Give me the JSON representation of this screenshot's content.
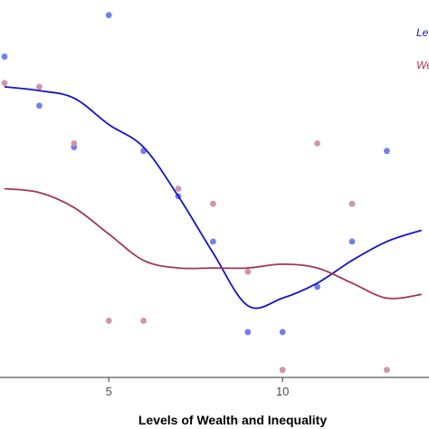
{
  "chart_data": {
    "type": "scatter",
    "xlabel": "Levels of Wealth and Inequality",
    "x_ticks": [
      5,
      10
    ],
    "xlim": [
      2,
      16
    ],
    "ylim": [
      0,
      1
    ],
    "grid": false,
    "legend": {
      "position": "top-right",
      "entries": [
        "Le",
        "We"
      ]
    },
    "series": [
      {
        "name": "Le",
        "color": "#1414c8",
        "point_color": "#6b78e8",
        "points": [
          {
            "x": 2,
            "y": 0.85
          },
          {
            "x": 3,
            "y": 0.72
          },
          {
            "x": 4,
            "y": 0.61
          },
          {
            "x": 5,
            "y": 0.96
          },
          {
            "x": 6,
            "y": 0.6
          },
          {
            "x": 7,
            "y": 0.48
          },
          {
            "x": 8,
            "y": 0.36
          },
          {
            "x": 9,
            "y": 0.12
          },
          {
            "x": 10,
            "y": 0.12
          },
          {
            "x": 11,
            "y": 0.24
          },
          {
            "x": 12,
            "y": 0.36
          },
          {
            "x": 13,
            "y": 0.6
          }
        ],
        "smooth": [
          {
            "x": 2,
            "y": 0.77
          },
          {
            "x": 3,
            "y": 0.76
          },
          {
            "x": 4,
            "y": 0.74
          },
          {
            "x": 5,
            "y": 0.67
          },
          {
            "x": 6,
            "y": 0.61
          },
          {
            "x": 7,
            "y": 0.48
          },
          {
            "x": 8,
            "y": 0.33
          },
          {
            "x": 9,
            "y": 0.19
          },
          {
            "x": 10,
            "y": 0.21
          },
          {
            "x": 11,
            "y": 0.25
          },
          {
            "x": 12,
            "y": 0.31
          },
          {
            "x": 13,
            "y": 0.36
          },
          {
            "x": 14,
            "y": 0.39
          }
        ]
      },
      {
        "name": "We",
        "color": "#a3355f",
        "point_color": "#cf8fa3",
        "points": [
          {
            "x": 2,
            "y": 0.78
          },
          {
            "x": 3,
            "y": 0.77
          },
          {
            "x": 4,
            "y": 0.62
          },
          {
            "x": 5,
            "y": 0.15
          },
          {
            "x": 6,
            "y": 0.15
          },
          {
            "x": 7,
            "y": 0.5
          },
          {
            "x": 8,
            "y": 0.46
          },
          {
            "x": 9,
            "y": 0.28
          },
          {
            "x": 10,
            "y": 0.02
          },
          {
            "x": 11,
            "y": 0.62
          },
          {
            "x": 12,
            "y": 0.46
          },
          {
            "x": 13,
            "y": 0.02
          }
        ],
        "smooth": [
          {
            "x": 2,
            "y": 0.5
          },
          {
            "x": 3,
            "y": 0.49
          },
          {
            "x": 4,
            "y": 0.45
          },
          {
            "x": 5,
            "y": 0.38
          },
          {
            "x": 6,
            "y": 0.31
          },
          {
            "x": 7,
            "y": 0.29
          },
          {
            "x": 8,
            "y": 0.29
          },
          {
            "x": 9,
            "y": 0.29
          },
          {
            "x": 10,
            "y": 0.3
          },
          {
            "x": 11,
            "y": 0.29
          },
          {
            "x": 12,
            "y": 0.25
          },
          {
            "x": 13,
            "y": 0.21
          },
          {
            "x": 14,
            "y": 0.22
          }
        ]
      }
    ]
  }
}
